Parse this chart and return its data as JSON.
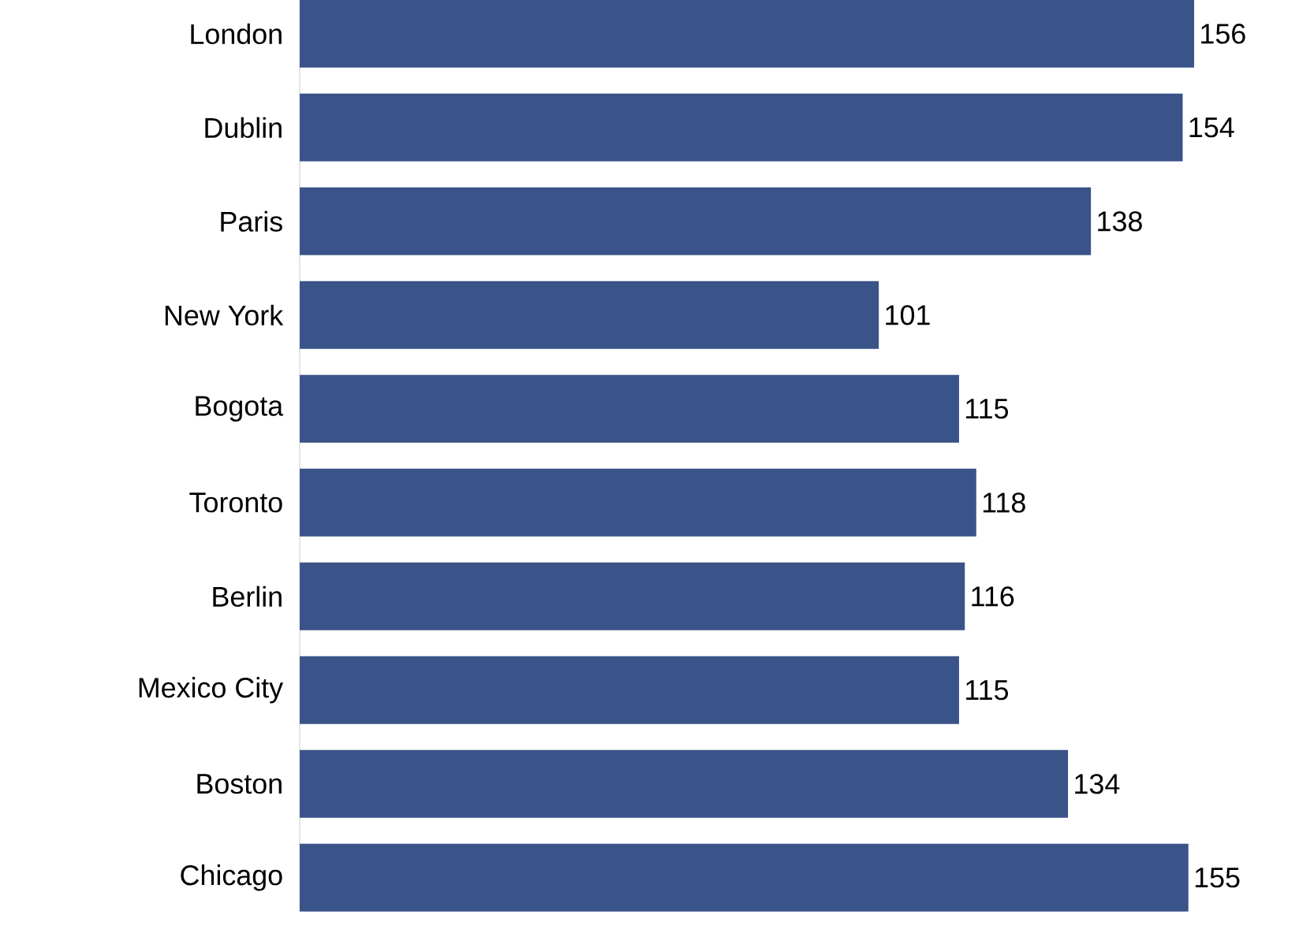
{
  "chart_data": {
    "type": "bar",
    "orientation": "horizontal",
    "data_labels": true,
    "color": "#3a5389",
    "categories": [
      "London",
      "Dublin",
      "Paris",
      "New York",
      "Bogota",
      "Toronto",
      "Berlin",
      "Mexico City",
      "Boston",
      "Chicago"
    ],
    "values": [
      156,
      154,
      138,
      101,
      115,
      118,
      116,
      115,
      134,
      155
    ]
  }
}
